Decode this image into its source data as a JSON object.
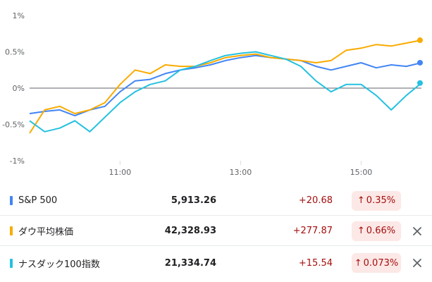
{
  "chart_data": {
    "type": "line",
    "ylim": [
      -1,
      1
    ],
    "y_ticks": [
      "1%",
      "0.5%",
      "0%",
      "-0.5%",
      "-1%"
    ],
    "y_tick_values": [
      1,
      0.5,
      0,
      -0.5,
      -1
    ],
    "x_ticks": [
      "11:00",
      "13:00",
      "15:00"
    ],
    "x_tick_values": [
      11,
      13,
      15
    ],
    "xlim": [
      9.5,
      16
    ],
    "baseline": 0,
    "grid": false,
    "series": [
      {
        "name": "S&P 500",
        "color": "#4285f4",
        "x": [
          9.5,
          9.75,
          10.0,
          10.25,
          10.5,
          10.75,
          11.0,
          11.25,
          11.5,
          11.75,
          12.0,
          12.25,
          12.5,
          12.75,
          13.0,
          13.25,
          13.5,
          13.75,
          14.0,
          14.25,
          14.5,
          14.75,
          15.0,
          15.25,
          15.5,
          15.75,
          16.0
        ],
        "values": [
          -0.35,
          -0.32,
          -0.3,
          -0.38,
          -0.3,
          -0.25,
          -0.05,
          0.1,
          0.12,
          0.2,
          0.25,
          0.28,
          0.32,
          0.38,
          0.42,
          0.45,
          0.42,
          0.4,
          0.38,
          0.3,
          0.25,
          0.3,
          0.35,
          0.28,
          0.32,
          0.3,
          0.35
        ]
      },
      {
        "name": "ダウ平均株価",
        "color": "#f9ab00",
        "x": [
          9.5,
          9.75,
          10.0,
          10.25,
          10.5,
          10.75,
          11.0,
          11.25,
          11.5,
          11.75,
          12.0,
          12.25,
          12.5,
          12.75,
          13.0,
          13.25,
          13.5,
          13.75,
          14.0,
          14.25,
          14.5,
          14.75,
          15.0,
          15.25,
          15.5,
          15.75,
          16.0
        ],
        "values": [
          -0.62,
          -0.3,
          -0.25,
          -0.35,
          -0.3,
          -0.2,
          0.05,
          0.25,
          0.2,
          0.32,
          0.3,
          0.3,
          0.35,
          0.42,
          0.45,
          0.47,
          0.42,
          0.4,
          0.38,
          0.35,
          0.38,
          0.52,
          0.55,
          0.6,
          0.58,
          0.62,
          0.66
        ]
      },
      {
        "name": "ナスダック100指数",
        "color": "#24c1e0",
        "x": [
          9.5,
          9.75,
          10.0,
          10.25,
          10.5,
          10.75,
          11.0,
          11.25,
          11.5,
          11.75,
          12.0,
          12.25,
          12.5,
          12.75,
          13.0,
          13.25,
          13.5,
          13.75,
          14.0,
          14.25,
          14.5,
          14.75,
          15.0,
          15.25,
          15.5,
          15.75,
          16.0
        ],
        "values": [
          -0.45,
          -0.6,
          -0.55,
          -0.45,
          -0.6,
          -0.4,
          -0.2,
          -0.05,
          0.05,
          0.1,
          0.25,
          0.3,
          0.38,
          0.45,
          0.48,
          0.5,
          0.45,
          0.4,
          0.3,
          0.1,
          -0.05,
          0.05,
          0.05,
          -0.1,
          -0.3,
          -0.1,
          0.07
        ]
      }
    ]
  },
  "rows": [
    {
      "name": "S&P 500",
      "color": "#4285f4",
      "price": "5,913.26",
      "change": "+20.68",
      "pct": "0.35%",
      "removable": false
    },
    {
      "name": "ダウ平均株価",
      "color": "#f9ab00",
      "price": "42,328.93",
      "change": "+277.87",
      "pct": "0.66%",
      "removable": true
    },
    {
      "name": "ナスダック100指数",
      "color": "#24c1e0",
      "price": "21,334.74",
      "change": "+15.54",
      "pct": "0.073%",
      "removable": true
    }
  ],
  "icons": {
    "up_arrow": "arrow-up-icon",
    "remove": "close-icon"
  }
}
